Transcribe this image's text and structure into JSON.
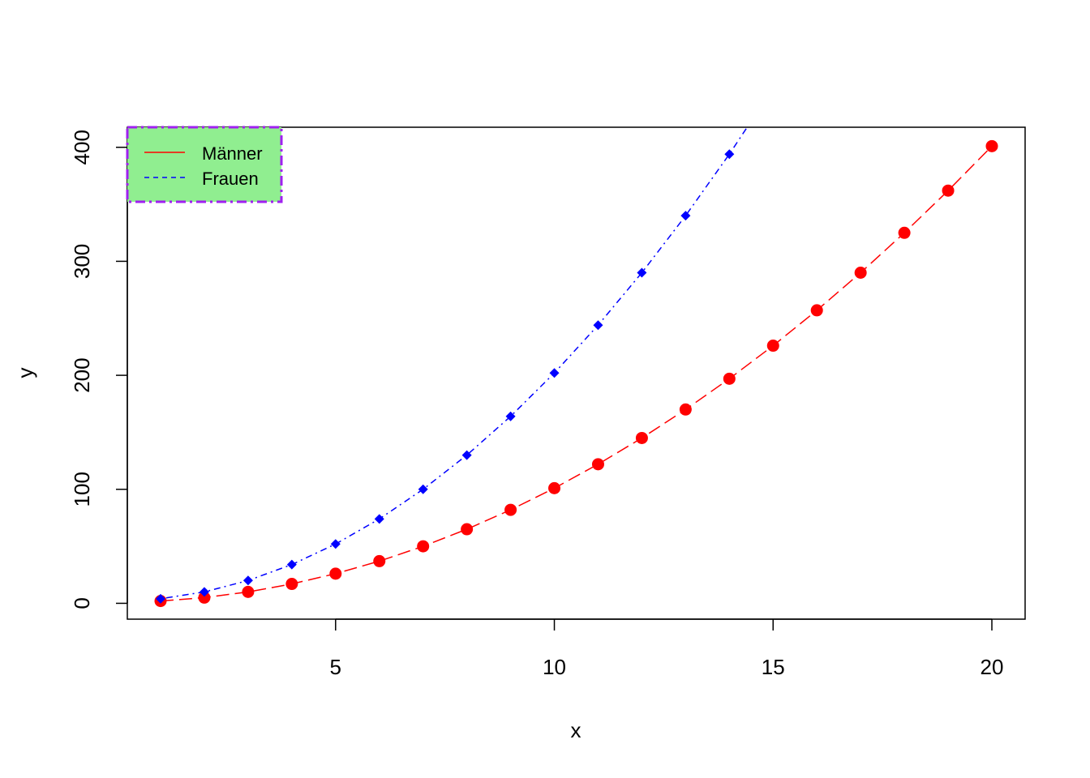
{
  "chart_data": {
    "type": "line",
    "title": "",
    "xlabel": "x",
    "ylabel": "y",
    "xlim": [
      0.24,
      20.76
    ],
    "ylim": [
      -13.9,
      417.6
    ],
    "xticks": [
      5,
      10,
      15,
      20
    ],
    "yticks": [
      0,
      100,
      200,
      300,
      400
    ],
    "legend": {
      "position": "top-left",
      "background": "#90ee90",
      "border_color": "#a020f0"
    },
    "grid": false,
    "series": [
      {
        "name": "Männer",
        "color": "#ff0000",
        "line_style": "longdash",
        "marker": "circle",
        "legend_line_style": "solid",
        "x": [
          1,
          2,
          3,
          4,
          5,
          6,
          7,
          8,
          9,
          10,
          11,
          12,
          13,
          14,
          15,
          16,
          17,
          18,
          19,
          20
        ],
        "y": [
          2,
          5,
          10,
          17,
          26,
          37,
          50,
          65,
          82,
          101,
          122,
          145,
          170,
          197,
          226,
          257,
          290,
          325,
          362,
          401
        ]
      },
      {
        "name": "Frauen",
        "color": "#0000ff",
        "line_style": "dotdash",
        "marker": "diamond",
        "legend_line_style": "dashed",
        "x": [
          1,
          2,
          3,
          4,
          5,
          6,
          7,
          8,
          9,
          10,
          11,
          12,
          13,
          14,
          15
        ],
        "y": [
          4,
          10,
          20,
          34,
          52,
          74,
          100,
          130,
          164,
          202,
          244,
          290,
          340,
          394,
          452
        ]
      }
    ]
  }
}
